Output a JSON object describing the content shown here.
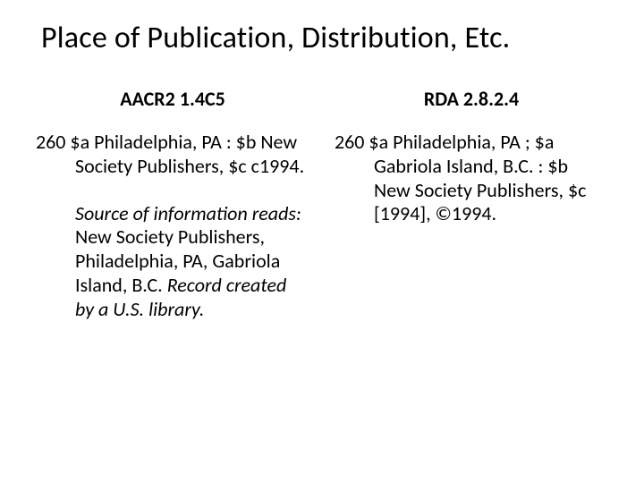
{
  "title": "Place of Publication, Distribution, Etc.",
  "left": {
    "heading": "AACR2  1.4C5",
    "entry": "260    $a Philadelphia, PA : $b New Society Publishers, $c c1994.",
    "source_lead": "Source of information reads:",
    "source_body": " New Society Publishers, Philadelphia, PA, Gabriola Island, B.C. ",
    "source_tail": "Record created by a U.S. library."
  },
  "right": {
    "heading": "RDA  2.8.2.4",
    "entry": "260    $a Philadelphia, PA ; $a Gabriola Island, B.C. : $b New Society Publishers, $c [1994], ©1994."
  }
}
